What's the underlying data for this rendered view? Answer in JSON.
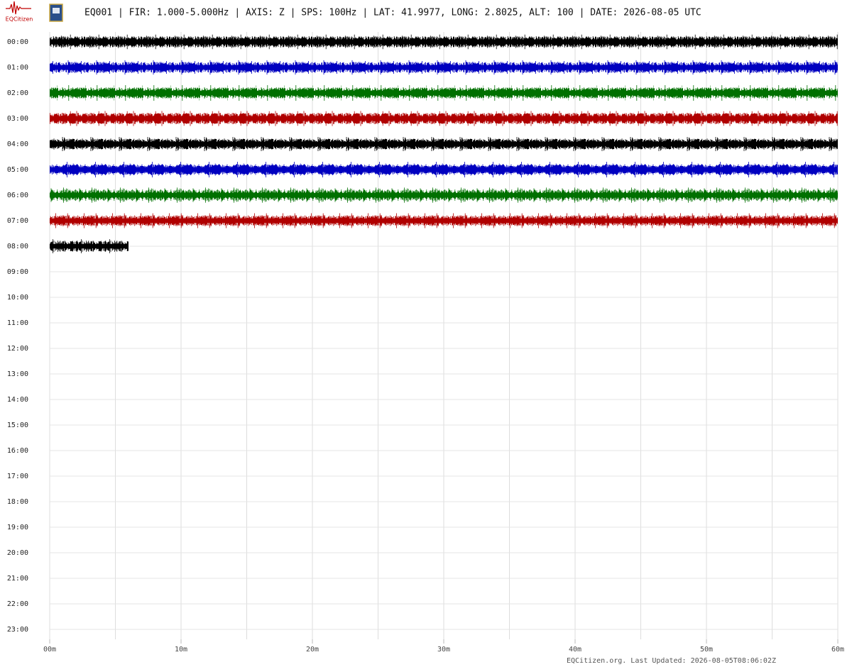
{
  "logo_text": "EQCitizen",
  "chart_data": {
    "type": "helicorder",
    "title": "EQ001 | FIR: 1.000-5.000Hz | AXIS: Z | SPS: 100Hz | LAT: 41.9977, LONG: 2.8025, ALT: 100 | DATE: 2026-08-05 UTC",
    "rows": [
      "00:00",
      "01:00",
      "02:00",
      "03:00",
      "04:00",
      "05:00",
      "06:00",
      "07:00",
      "08:00",
      "09:00",
      "10:00",
      "11:00",
      "12:00",
      "13:00",
      "14:00",
      "15:00",
      "16:00",
      "17:00",
      "18:00",
      "19:00",
      "20:00",
      "21:00",
      "22:00",
      "23:00"
    ],
    "xlim": [
      0,
      60
    ],
    "xticks": [
      {
        "value": 0,
        "label": "00m"
      },
      {
        "value": 10,
        "label": "10m"
      },
      {
        "value": 20,
        "label": "20m"
      },
      {
        "value": 30,
        "label": "30m"
      },
      {
        "value": 40,
        "label": "40m"
      },
      {
        "value": 50,
        "label": "50m"
      },
      {
        "value": 60,
        "label": "60m"
      }
    ],
    "xgrid": [
      0,
      5,
      10,
      15,
      20,
      25,
      30,
      35,
      40,
      45,
      50,
      55,
      60
    ],
    "grid": true,
    "traces": [
      {
        "color": "#000000",
        "x": [
          0,
          60
        ]
      },
      {
        "color": "#0000c0",
        "x": [
          0,
          60
        ]
      },
      {
        "color": "#007000",
        "x": [
          0,
          60
        ]
      },
      {
        "color": "#b00000",
        "x": [
          0,
          60
        ]
      },
      {
        "color": "#000000",
        "x": [
          0,
          60
        ]
      },
      {
        "color": "#0000c0",
        "x": [
          0,
          60
        ]
      },
      {
        "color": "#007000",
        "x": [
          0,
          60
        ]
      },
      {
        "color": "#b00000",
        "x": [
          0,
          60
        ]
      },
      {
        "color": "#000000",
        "x": [
          0,
          6
        ]
      }
    ],
    "footer": "EQCitizen.org. Last Updated: 2026-08-05T08:06:02Z"
  }
}
